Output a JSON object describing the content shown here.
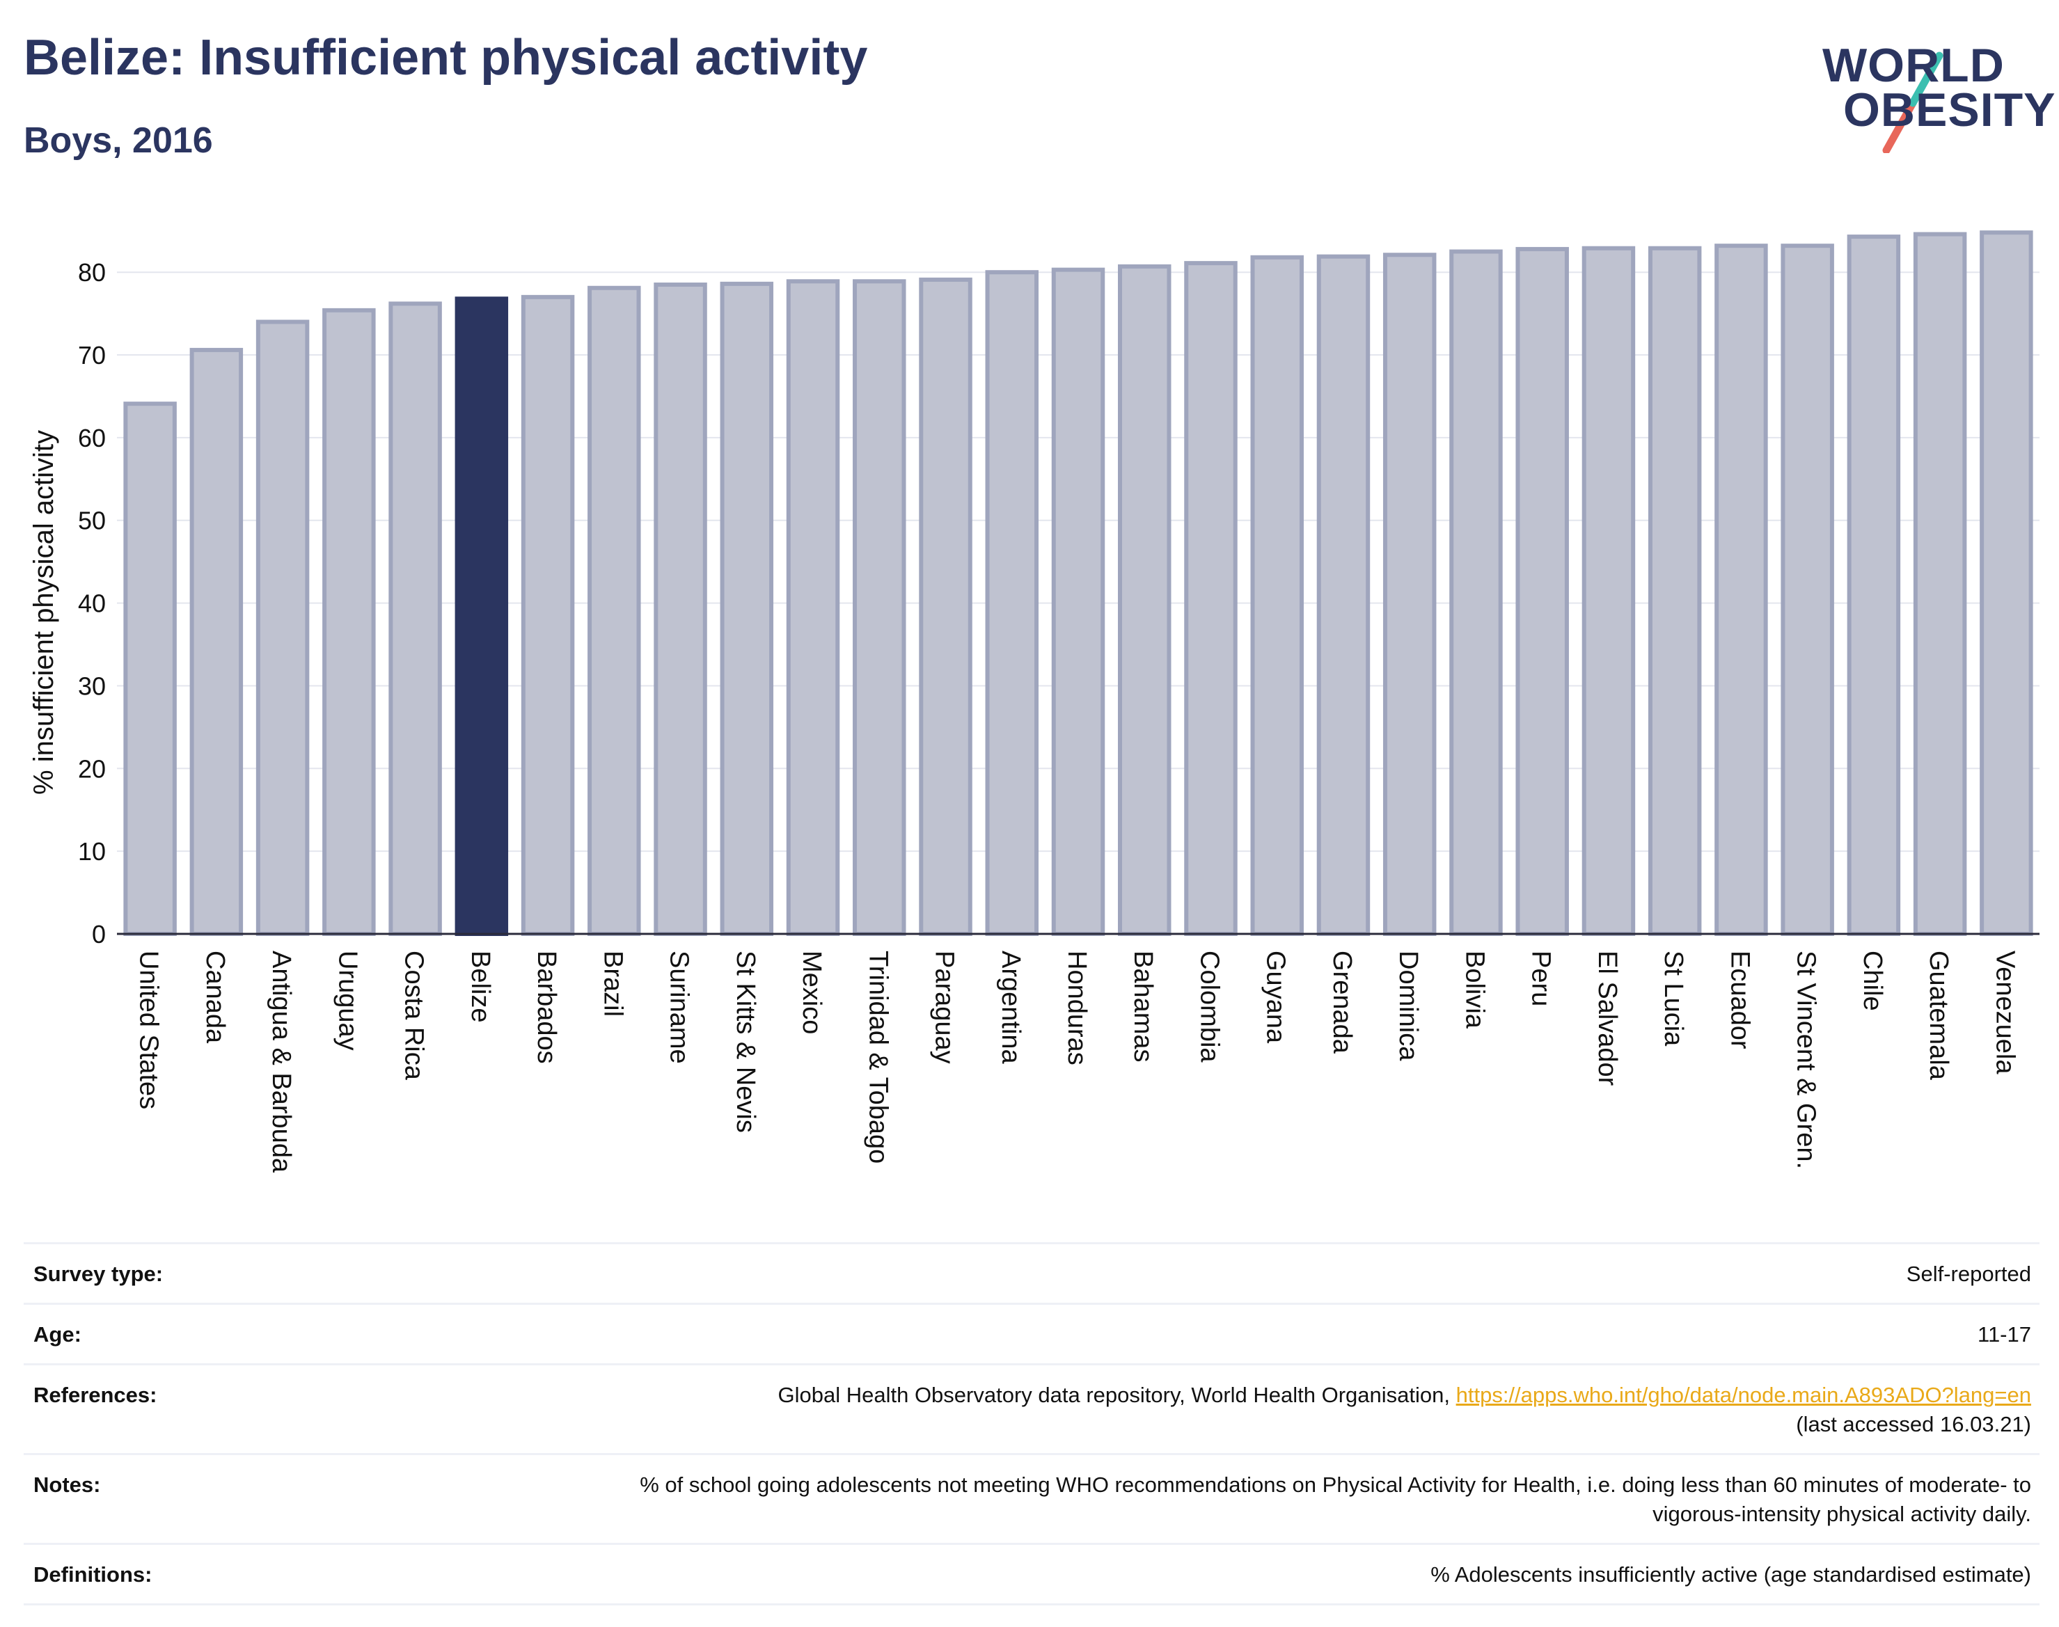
{
  "header": {
    "title": "Belize: Insufficient physical activity",
    "subtitle": "Boys, 2016"
  },
  "logo": {
    "line1": "WORLD",
    "line2": "OBESITY",
    "text_color": "#2b3560",
    "slash_colors": [
      "#3bbfb0",
      "#e8675a"
    ]
  },
  "chart_data": {
    "type": "bar",
    "ylabel": "% insufficient physical activity",
    "xlabel": "",
    "ylim": [
      0,
      87
    ],
    "yticks": [
      0,
      10,
      20,
      30,
      40,
      50,
      60,
      70,
      80
    ],
    "grid": true,
    "highlight": "Belize",
    "colors": {
      "bar": "#bfc2d0",
      "bar_edge": "#9fa5bd",
      "highlight": "#2b3560",
      "grid": "#e4e6ee",
      "axis": "#2b2b3b"
    },
    "categories": [
      "United States",
      "Canada",
      "Antigua & Barbuda",
      "Uruguay",
      "Costa Rica",
      "Belize",
      "Barbados",
      "Brazil",
      "Suriname",
      "St Kitts & Nevis",
      "Mexico",
      "Trinidad & Tobago",
      "Paraguay",
      "Argentina",
      "Honduras",
      "Bahamas",
      "Colombia",
      "Guyana",
      "Grenada",
      "Dominica",
      "Bolivia",
      "Peru",
      "El Salvador",
      "St Lucia",
      "Ecuador",
      "St Vincent & Gren.",
      "Chile",
      "Guatemala",
      "Venezuela"
    ],
    "values": [
      64.1,
      70.6,
      74.0,
      75.4,
      76.2,
      76.8,
      77.0,
      78.1,
      78.5,
      78.6,
      78.9,
      78.9,
      79.1,
      80.0,
      80.3,
      80.7,
      81.1,
      81.8,
      81.9,
      82.1,
      82.5,
      82.8,
      82.9,
      82.9,
      83.2,
      83.2,
      84.3,
      84.6,
      84.8
    ]
  },
  "info_table": {
    "survey_type": {
      "label": "Survey type:",
      "value": "Self-reported"
    },
    "age": {
      "label": "Age:",
      "value": "11-17"
    },
    "references": {
      "label": "References:",
      "text": "Global Health Observatory data repository, World Health Organisation,",
      "link": "https://apps.who.int/gho/data/node.main.A893ADO?lang=en",
      "accessed": "(last accessed 16.03.21)"
    },
    "notes": {
      "label": "Notes:",
      "value": "% of school going adolescents not meeting WHO recommendations on Physical Activity for Health, i.e. doing less than 60 minutes of moderate- to vigorous-intensity physical activity daily."
    },
    "definitions": {
      "label": "Definitions:",
      "value": "% Adolescents insufficiently active (age standardised estimate)"
    }
  }
}
